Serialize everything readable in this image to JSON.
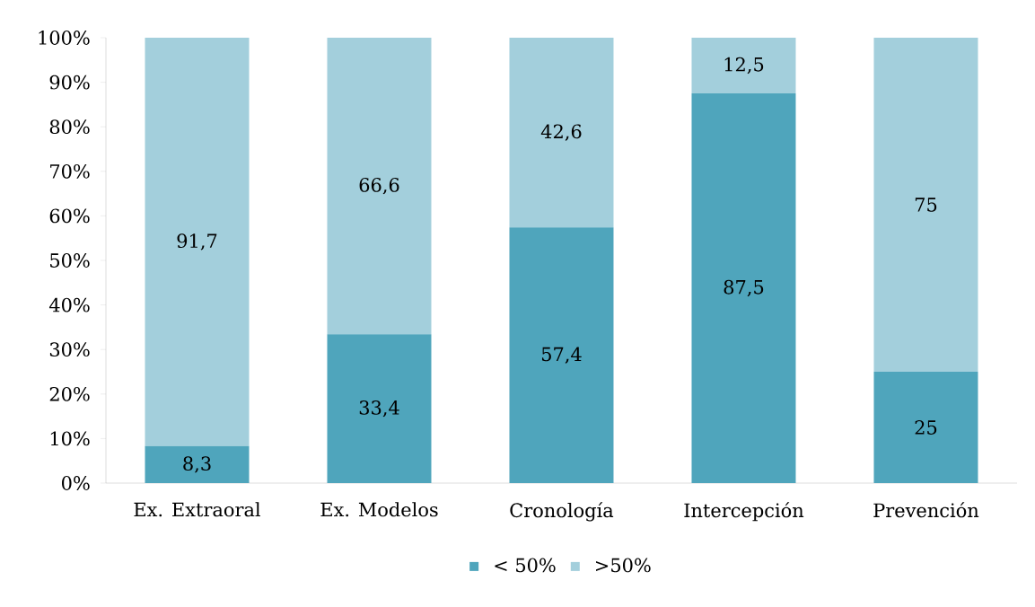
{
  "chart_data": {
    "type": "bar",
    "stacked": true,
    "categories": [
      "Ex. Extraoral",
      "Ex. Modelos",
      "Cronología",
      "Intercepción",
      "Prevención"
    ],
    "series": [
      {
        "name": "< 50%",
        "color": "#4fa5bc",
        "values": [
          8.3,
          33.4,
          57.4,
          87.5,
          25
        ],
        "value_labels": [
          "8,3",
          "33,4",
          "57,4",
          "87,5",
          "25"
        ]
      },
      {
        "name": ">50%",
        "color": "#a3cfdc",
        "values": [
          91.7,
          66.6,
          42.6,
          12.5,
          75
        ],
        "value_labels": [
          "91,7",
          "66,6",
          "42,6",
          "12,5",
          "75"
        ]
      }
    ],
    "ylim": [
      0,
      100
    ],
    "yticks": [
      {
        "value": 0,
        "label": "0%"
      },
      {
        "value": 10,
        "label": "10%"
      },
      {
        "value": 20,
        "label": "20%"
      },
      {
        "value": 30,
        "label": "30%"
      },
      {
        "value": 40,
        "label": "40%"
      },
      {
        "value": 50,
        "label": "50%"
      },
      {
        "value": 60,
        "label": "60%"
      },
      {
        "value": 70,
        "label": "70%"
      },
      {
        "value": 80,
        "label": "80%"
      },
      {
        "value": 90,
        "label": "90%"
      },
      {
        "value": 100,
        "label": "100%"
      }
    ],
    "grid": false,
    "legend": "bottom"
  }
}
